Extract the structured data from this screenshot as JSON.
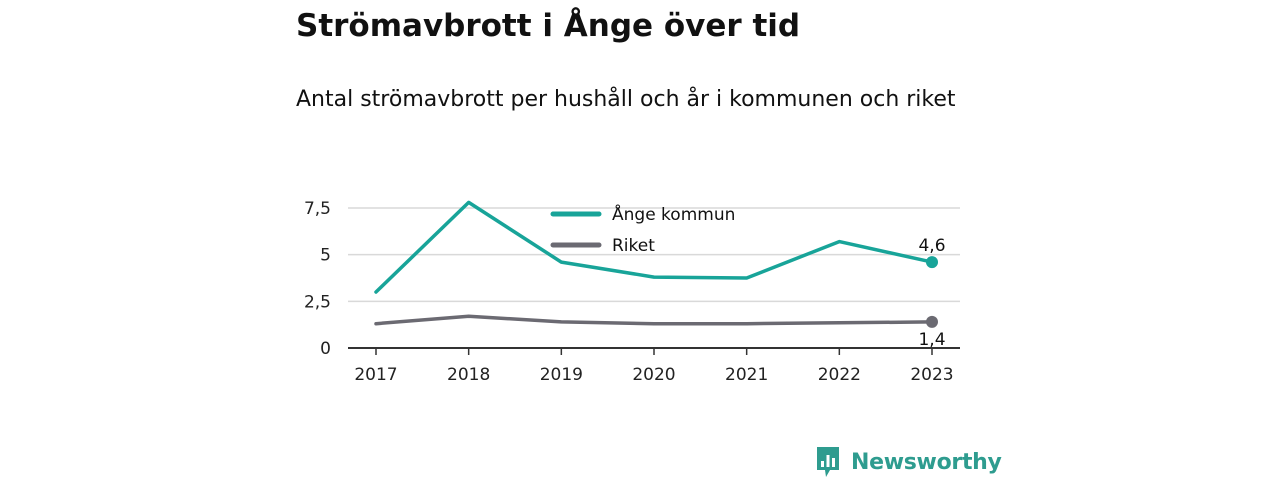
{
  "title": "Strömavbrott i Ånge över tid",
  "subtitle": "Antal strömavbrott per hushåll och år i kommunen och riket",
  "brand": {
    "name": "Newsworthy"
  },
  "colors": {
    "ange": "#18a499",
    "riket": "#6b6a72",
    "grid": "#d9d9d9",
    "axis": "#333333",
    "brand": "#2e9c8f"
  },
  "chart_data": {
    "type": "line",
    "x": [
      "2017",
      "2018",
      "2019",
      "2020",
      "2021",
      "2022",
      "2023"
    ],
    "series": [
      {
        "name": "Ånge kommun",
        "color": "#18a499",
        "values": [
          3.0,
          7.8,
          4.6,
          3.8,
          3.75,
          5.7,
          4.6
        ],
        "end_label": "4,6"
      },
      {
        "name": "Riket",
        "color": "#6b6a72",
        "values": [
          1.3,
          1.7,
          1.4,
          1.3,
          1.3,
          1.35,
          1.4
        ],
        "end_label": "1,4"
      }
    ],
    "y_ticks": [
      {
        "value": 0,
        "label": "0"
      },
      {
        "value": 2.5,
        "label": "2,5"
      },
      {
        "value": 5,
        "label": "5"
      },
      {
        "value": 7.5,
        "label": "7,5"
      }
    ],
    "ylim": [
      0,
      7.5
    ],
    "grid": true,
    "legend_position": "top-center"
  }
}
